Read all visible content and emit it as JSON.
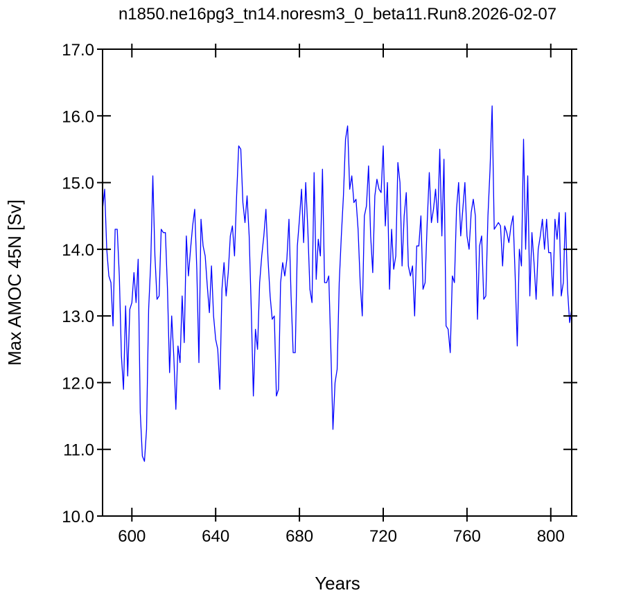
{
  "chart_data": {
    "type": "line",
    "title": "n1850.ne16pg3_tn14.noresm3_0_beta11.Run8.2026-02-07",
    "x_label": "Years",
    "y_label": "Max AMOC 45N [Sv]",
    "xlim": [
      586,
      810
    ],
    "ylim": [
      10,
      17
    ],
    "xticks": [
      600,
      640,
      680,
      720,
      760,
      800
    ],
    "yticks": [
      {
        "value": 10,
        "label": "10.0"
      },
      {
        "value": 11,
        "label": "11.0"
      },
      {
        "value": 12,
        "label": "12.0"
      },
      {
        "value": 13,
        "label": "13.0"
      },
      {
        "value": 14,
        "label": "14.0"
      },
      {
        "value": 15,
        "label": "15.0"
      },
      {
        "value": 16,
        "label": "16.0"
      },
      {
        "value": 17,
        "label": "17.0"
      }
    ],
    "x": [
      586,
      587,
      588,
      589,
      590,
      591,
      592,
      593,
      594,
      595,
      596,
      597,
      598,
      599,
      600,
      601,
      602,
      603,
      604,
      605,
      606,
      607,
      608,
      609,
      610,
      611,
      612,
      613,
      614,
      615,
      616,
      617,
      618,
      619,
      620,
      621,
      622,
      623,
      624,
      625,
      626,
      627,
      628,
      629,
      630,
      631,
      632,
      633,
      634,
      635,
      636,
      637,
      638,
      639,
      640,
      641,
      642,
      643,
      644,
      645,
      646,
      647,
      648,
      649,
      650,
      651,
      652,
      653,
      654,
      655,
      656,
      657,
      658,
      659,
      660,
      661,
      662,
      663,
      664,
      665,
      666,
      667,
      668,
      669,
      670,
      671,
      672,
      673,
      674,
      675,
      676,
      677,
      678,
      679,
      680,
      681,
      682,
      683,
      684,
      685,
      686,
      687,
      688,
      689,
      690,
      691,
      692,
      693,
      694,
      695,
      696,
      697,
      698,
      699,
      700,
      701,
      702,
      703,
      704,
      705,
      706,
      707,
      708,
      709,
      710,
      711,
      712,
      713,
      714,
      715,
      716,
      717,
      718,
      719,
      720,
      721,
      722,
      723,
      724,
      725,
      726,
      727,
      728,
      729,
      730,
      731,
      732,
      733,
      734,
      735,
      736,
      737,
      738,
      739,
      740,
      741,
      742,
      743,
      744,
      745,
      746,
      747,
      748,
      749,
      750,
      751,
      752,
      753,
      754,
      755,
      756,
      757,
      758,
      759,
      760,
      761,
      762,
      763,
      764,
      765,
      766,
      767,
      768,
      769,
      770,
      771,
      772,
      773,
      774,
      775,
      776,
      777,
      778,
      779,
      780,
      781,
      782,
      783,
      784,
      785,
      786,
      787,
      788,
      789,
      790,
      791,
      792,
      793,
      794,
      795,
      796,
      797,
      798,
      799,
      800,
      801,
      802,
      803,
      804,
      805,
      806,
      807,
      808,
      809,
      810
    ],
    "series": [
      {
        "name": "Max AMOC 45N",
        "color": "#0000ff",
        "values": [
          14.6,
          14.9,
          14.0,
          13.6,
          13.5,
          12.85,
          14.3,
          14.3,
          13.6,
          12.4,
          11.9,
          13.15,
          12.1,
          13.1,
          13.2,
          13.65,
          13.2,
          13.85,
          11.55,
          10.9,
          10.82,
          11.3,
          13.1,
          13.8,
          15.1,
          13.9,
          13.25,
          13.3,
          14.3,
          14.25,
          14.25,
          13.4,
          12.15,
          13.0,
          12.4,
          11.6,
          12.55,
          12.3,
          13.3,
          12.6,
          14.2,
          13.6,
          14.0,
          14.35,
          14.6,
          13.7,
          12.3,
          14.45,
          14.05,
          13.9,
          13.45,
          13.05,
          13.75,
          13.0,
          12.65,
          12.5,
          11.9,
          13.4,
          13.8,
          13.3,
          13.65,
          14.2,
          14.35,
          13.9,
          14.8,
          15.55,
          15.5,
          14.7,
          14.4,
          14.8,
          14.2,
          13.1,
          11.8,
          12.8,
          12.5,
          13.5,
          13.9,
          14.2,
          14.6,
          13.85,
          13.3,
          12.95,
          13.0,
          11.8,
          11.9,
          13.5,
          13.8,
          13.6,
          13.85,
          14.45,
          13.3,
          12.45,
          12.45,
          14.05,
          14.45,
          14.9,
          14.1,
          15.0,
          14.3,
          13.4,
          13.2,
          15.15,
          13.55,
          14.15,
          13.9,
          15.2,
          13.5,
          13.5,
          13.6,
          12.5,
          11.3,
          12.0,
          12.2,
          13.5,
          14.2,
          14.8,
          15.65,
          15.85,
          14.9,
          15.1,
          14.7,
          14.75,
          14.3,
          13.5,
          13.0,
          14.5,
          14.65,
          15.25,
          14.2,
          13.65,
          14.8,
          15.05,
          14.9,
          14.85,
          15.55,
          14.35,
          15.0,
          13.4,
          14.3,
          13.7,
          13.9,
          15.3,
          15.0,
          13.75,
          14.5,
          14.85,
          13.75,
          13.6,
          13.75,
          13.0,
          14.05,
          14.05,
          14.5,
          13.4,
          13.5,
          14.4,
          15.15,
          14.4,
          14.6,
          14.9,
          14.4,
          15.5,
          14.2,
          15.35,
          12.85,
          12.8,
          12.45,
          13.6,
          13.5,
          14.6,
          15.0,
          14.2,
          14.6,
          15.0,
          14.2,
          14.0,
          14.55,
          14.75,
          14.5,
          12.95,
          14.05,
          14.2,
          13.25,
          13.3,
          14.5,
          15.2,
          16.15,
          14.3,
          14.35,
          14.4,
          14.35,
          13.75,
          14.35,
          14.25,
          14.1,
          14.35,
          14.5,
          13.6,
          12.55,
          14.0,
          13.75,
          15.65,
          14.0,
          15.1,
          13.3,
          14.25,
          13.8,
          13.25,
          14.0,
          14.2,
          14.45,
          14.0,
          14.45,
          13.95,
          13.95,
          13.3,
          14.45,
          14.15,
          14.55,
          13.3,
          13.5,
          14.55,
          13.4,
          12.9,
          13.1
        ]
      }
    ]
  }
}
